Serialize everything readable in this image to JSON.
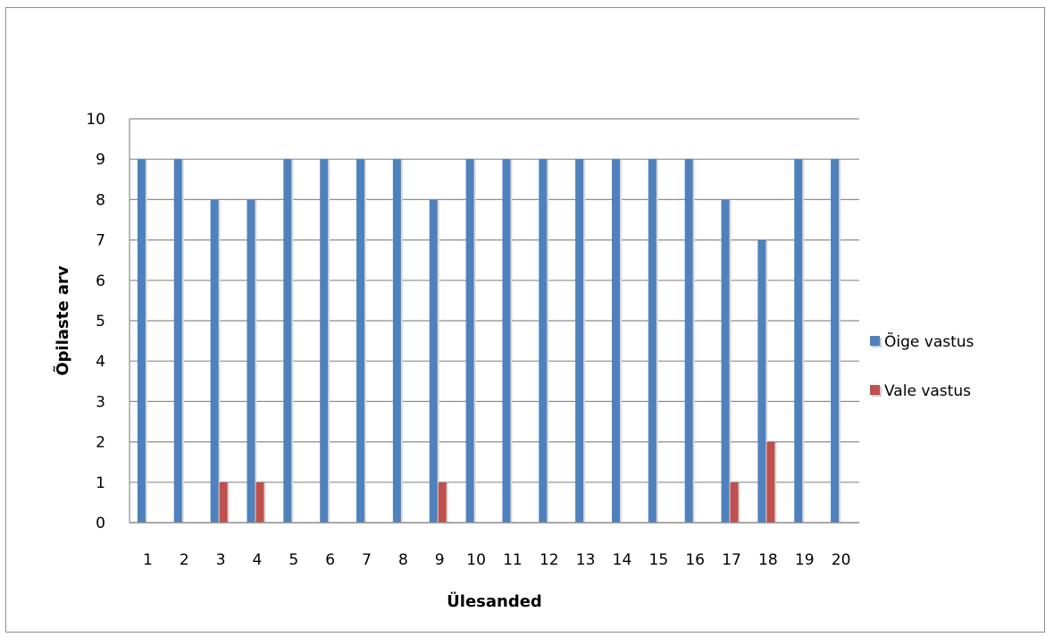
{
  "chart_data": {
    "type": "bar",
    "categories": [
      "1",
      "2",
      "3",
      "4",
      "5",
      "6",
      "7",
      "8",
      "9",
      "10",
      "11",
      "12",
      "13",
      "14",
      "15",
      "16",
      "17",
      "18",
      "19",
      "20"
    ],
    "series": [
      {
        "name": "Õige vastus",
        "color": "#4f81bd",
        "values": [
          9,
          9,
          8,
          8,
          9,
          9,
          9,
          9,
          8,
          9,
          9,
          9,
          9,
          9,
          9,
          9,
          8,
          7,
          9,
          9
        ]
      },
      {
        "name": "Vale vastus",
        "color": "#c0504d",
        "values": [
          0,
          0,
          1,
          1,
          0,
          0,
          0,
          0,
          1,
          0,
          0,
          0,
          0,
          0,
          0,
          0,
          1,
          2,
          0,
          0
        ]
      }
    ],
    "xlabel": "Ülesanded",
    "ylabel": "Õpilaste arv",
    "ylim": [
      0,
      10
    ],
    "yticks": [
      "0",
      "1",
      "2",
      "3",
      "4",
      "5",
      "6",
      "7",
      "8",
      "9",
      "10"
    ],
    "grid": true,
    "legend_position": "right"
  }
}
